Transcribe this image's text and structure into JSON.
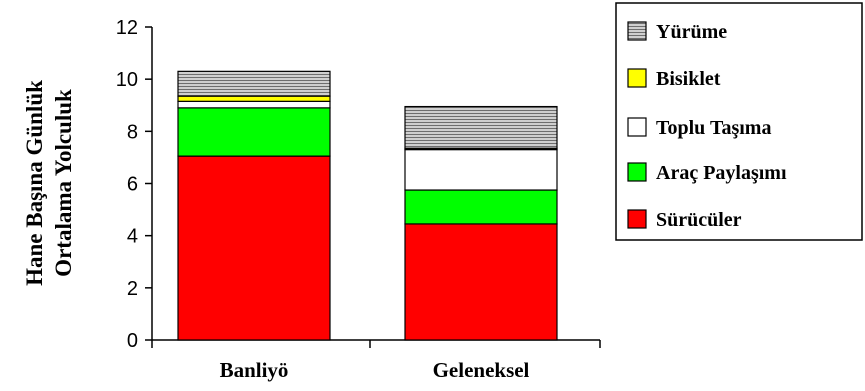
{
  "chart_data": {
    "type": "bar",
    "stacked": true,
    "categories": [
      "Banliyö",
      "Geleneksel"
    ],
    "series": [
      {
        "name": "Sürücüler",
        "values": [
          7.05,
          4.45
        ],
        "color": "#ff0000"
      },
      {
        "name": "Araç Paylaşımı",
        "values": [
          1.85,
          1.3
        ],
        "color": "#00ff00"
      },
      {
        "name": "Toplu Taşıma",
        "values": [
          0.25,
          1.55
        ],
        "color": "#ffffff"
      },
      {
        "name": "Bisiklet",
        "values": [
          0.2,
          0.05
        ],
        "color": "#ffff00"
      },
      {
        "name": "Yürüme",
        "values": [
          0.95,
          1.6
        ],
        "color": "#a8a8a8",
        "pattern": "horizontal-stripes"
      }
    ],
    "legend_order": [
      "Yürüme",
      "Bisiklet",
      "Toplu Taşıma",
      "Araç Paylaşımı",
      "Sürücüler"
    ],
    "ylabel_lines": [
      "Hane Başına Günlük",
      "Ortalama Yolculuk"
    ],
    "y_ticks": [
      "0",
      "2",
      "4",
      "6",
      "8",
      "10",
      "12"
    ],
    "ylim": [
      0,
      12
    ],
    "legend_position": "right",
    "grid": false
  }
}
